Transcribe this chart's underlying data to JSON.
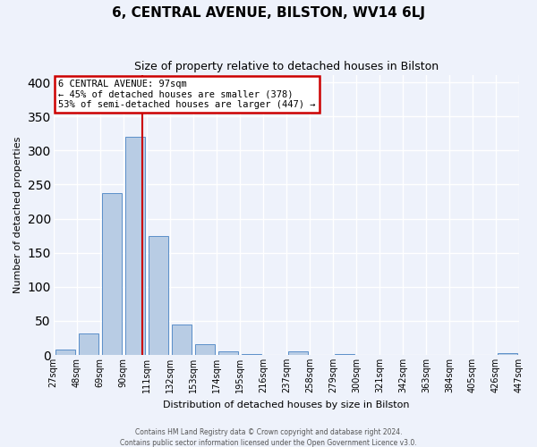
{
  "title": "6, CENTRAL AVENUE, BILSTON, WV14 6LJ",
  "subtitle": "Size of property relative to detached houses in Bilston",
  "xlabel": "Distribution of detached houses by size in Bilston",
  "ylabel": "Number of detached properties",
  "bar_values": [
    8,
    32,
    238,
    320,
    175,
    44,
    16,
    5,
    1,
    0,
    5,
    0,
    1,
    0,
    0,
    0,
    0,
    0,
    0,
    3
  ],
  "bin_labels": [
    "27sqm",
    "48sqm",
    "69sqm",
    "90sqm",
    "111sqm",
    "132sqm",
    "153sqm",
    "174sqm",
    "195sqm",
    "216sqm",
    "237sqm",
    "258sqm",
    "279sqm",
    "300sqm",
    "321sqm",
    "342sqm",
    "363sqm",
    "384sqm",
    "405sqm",
    "426sqm",
    "447sqm"
  ],
  "bar_color": "#b8cce4",
  "bar_edge_color": "#5b8fc9",
  "annotation_title": "6 CENTRAL AVENUE: 97sqm",
  "annotation_line1": "← 45% of detached houses are smaller (378)",
  "annotation_line2": "53% of semi-detached houses are larger (447) →",
  "annotation_box_color": "#ffffff",
  "annotation_box_edge_color": "#cc0000",
  "vline_color": "#cc0000",
  "vline_x": 3.333,
  "ylim": [
    0,
    410
  ],
  "yticks": [
    0,
    50,
    100,
    150,
    200,
    250,
    300,
    350,
    400
  ],
  "footer1": "Contains HM Land Registry data © Crown copyright and database right 2024.",
  "footer2": "Contains public sector information licensed under the Open Government Licence v3.0.",
  "background_color": "#eef2fb",
  "grid_color": "#ffffff",
  "title_fontsize": 11,
  "subtitle_fontsize": 9,
  "ylabel_fontsize": 8,
  "xlabel_fontsize": 8,
  "tick_fontsize": 7,
  "annotation_fontsize": 7.5
}
